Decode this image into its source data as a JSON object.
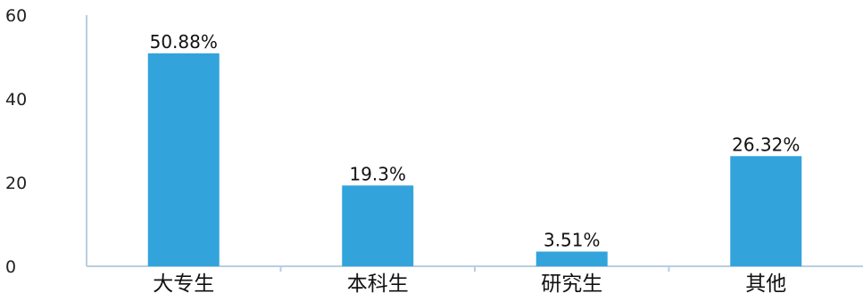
{
  "chart_data": {
    "type": "bar",
    "categories": [
      "大专生",
      "本科生",
      "研究生",
      "其他"
    ],
    "values": [
      50.88,
      19.3,
      3.51,
      26.32
    ],
    "data_labels": [
      "50.88%",
      "19.3%",
      "3.51%",
      "26.32%"
    ],
    "yticks": [
      0,
      20,
      40,
      60
    ],
    "ylim": [
      0,
      60
    ],
    "grid": false,
    "legend": "none",
    "colors": {
      "bar": "#33a3db",
      "axis": "#b9cde0"
    }
  }
}
